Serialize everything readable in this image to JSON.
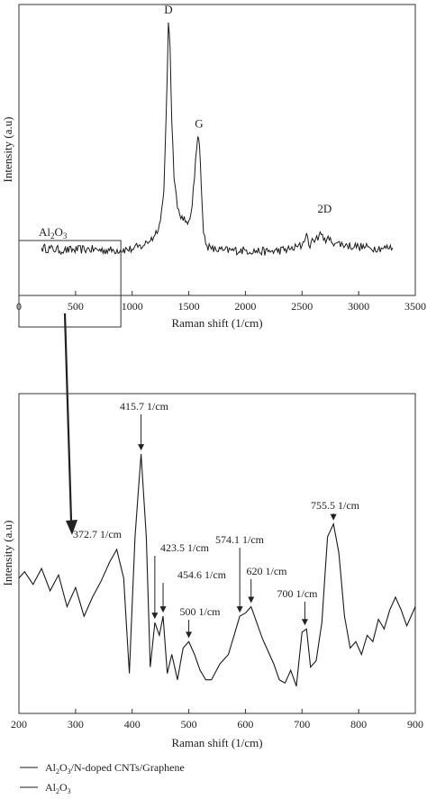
{
  "colors": {
    "line": "#1a1a1a",
    "axis": "#333333",
    "background": "#ffffff"
  },
  "chart_data": [
    {
      "type": "line",
      "xlabel": "Raman shift (1/cm)",
      "ylabel": "Intensity (a.u)",
      "xlim": [
        0,
        3500
      ],
      "ylim": [
        0,
        1
      ],
      "x_ticks": [
        0,
        500,
        1000,
        1500,
        2000,
        2500,
        3000,
        3500
      ],
      "grid": false,
      "series": [
        {
          "name": "Al2O3/N-doped CNTs/Graphene",
          "x": [
            200,
            400,
            600,
            800,
            1000,
            1100,
            1200,
            1250,
            1280,
            1300,
            1320,
            1335,
            1350,
            1370,
            1400,
            1450,
            1500,
            1530,
            1560,
            1580,
            1595,
            1610,
            1630,
            1660,
            1700,
            1800,
            2000,
            2200,
            2400,
            2500,
            2540,
            2560,
            2600,
            2650,
            2700,
            2800,
            2900,
            3000,
            3100,
            3200,
            3300
          ],
          "y": [
            0.09,
            0.08,
            0.085,
            0.08,
            0.085,
            0.1,
            0.14,
            0.2,
            0.32,
            0.62,
            1.0,
            0.9,
            0.6,
            0.37,
            0.25,
            0.2,
            0.2,
            0.26,
            0.45,
            0.54,
            0.5,
            0.34,
            0.15,
            0.1,
            0.085,
            0.08,
            0.08,
            0.075,
            0.085,
            0.1,
            0.15,
            0.1,
            0.12,
            0.14,
            0.13,
            0.11,
            0.1,
            0.095,
            0.09,
            0.09,
            0.09
          ]
        }
      ],
      "annotations": [
        {
          "text": "D",
          "x": 1320,
          "y": 1.0
        },
        {
          "text": "G",
          "x": 1590,
          "y": 0.54
        },
        {
          "text": "2D",
          "x": 2620,
          "y": 0.16
        }
      ],
      "inset_box_label": {
        "prefix": "Al",
        "sub1": "2",
        "mid": "O",
        "sub2": "3"
      },
      "inset_box_range": [
        0,
        900
      ]
    },
    {
      "type": "line",
      "xlabel": "Raman shift (1/cm)",
      "ylabel": "Intensity (a.u)",
      "xlim": [
        200,
        900
      ],
      "ylim": [
        0,
        1
      ],
      "x_ticks": [
        200,
        300,
        400,
        500,
        600,
        700,
        800,
        900
      ],
      "grid": false,
      "series": [
        {
          "name": "Al2O3",
          "x": [
            200,
            210,
            225,
            240,
            255,
            270,
            285,
            300,
            315,
            330,
            345,
            360,
            372.7,
            385,
            395,
            405,
            415.7,
            425,
            432,
            440,
            448,
            454.6,
            462,
            470,
            480,
            490,
            500,
            510,
            520,
            530,
            540,
            555,
            570,
            580,
            590,
            600,
            610,
            620,
            630,
            640,
            650,
            660,
            670,
            680,
            690,
            700,
            708,
            715,
            725,
            735,
            745,
            755.5,
            765,
            775,
            785,
            795,
            805,
            815,
            825,
            835,
            845,
            855,
            865,
            875,
            885,
            900
          ],
          "y": [
            0.42,
            0.44,
            0.4,
            0.45,
            0.38,
            0.43,
            0.33,
            0.39,
            0.3,
            0.36,
            0.41,
            0.47,
            0.51,
            0.42,
            0.12,
            0.55,
            0.81,
            0.55,
            0.14,
            0.28,
            0.24,
            0.3,
            0.12,
            0.18,
            0.1,
            0.2,
            0.22,
            0.18,
            0.13,
            0.1,
            0.1,
            0.15,
            0.18,
            0.24,
            0.3,
            0.31,
            0.33,
            0.28,
            0.23,
            0.19,
            0.15,
            0.1,
            0.09,
            0.13,
            0.08,
            0.25,
            0.26,
            0.14,
            0.16,
            0.28,
            0.55,
            0.59,
            0.5,
            0.3,
            0.2,
            0.22,
            0.18,
            0.24,
            0.22,
            0.29,
            0.26,
            0.32,
            0.36,
            0.32,
            0.27,
            0.33
          ]
        }
      ],
      "annotations": [
        {
          "text": "372.7 1/cm",
          "x": 372.7,
          "y": 0.51
        },
        {
          "text": "415.7 1/cm",
          "x": 415.7,
          "y": 0.81
        },
        {
          "text": "423.5 1/cm",
          "x": 440,
          "y": 0.28
        },
        {
          "text": "454.6 1/cm",
          "x": 454.6,
          "y": 0.3
        },
        {
          "text": "500 1/cm",
          "x": 500,
          "y": 0.22
        },
        {
          "text": "574.1 1/cm",
          "x": 590,
          "y": 0.3
        },
        {
          "text": "620 1/cm",
          "x": 610,
          "y": 0.33
        },
        {
          "text": "700 1/cm",
          "x": 705,
          "y": 0.26
        },
        {
          "text": "755.5 1/cm",
          "x": 755.5,
          "y": 0.59
        }
      ]
    }
  ],
  "legend": {
    "entry1": {
      "prefix": "Al",
      "sub1": "2",
      "mid": "O",
      "sub2": "3",
      "suffix": "/N-doped CNTs/Graphene"
    },
    "entry2": {
      "prefix": "Al",
      "sub1": "2",
      "mid": "O",
      "sub2": "3",
      "suffix": ""
    }
  }
}
